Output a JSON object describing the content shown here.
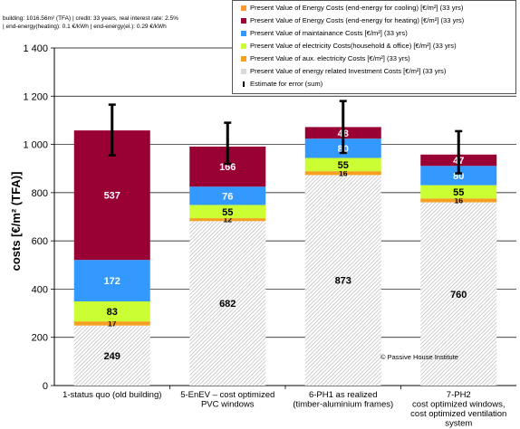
{
  "header": {
    "line1": "building: 1016.56m² (TFA) | credit: 33 years,  real interest rate: 2.5%",
    "line2": "| end-energy(heating):  0.1 €/kWh  |  end-energy(el.):  0.29 €/kWh"
  },
  "watermark": "© Passive House Institute",
  "chart_data": {
    "type": "bar",
    "stacked": true,
    "ylabel": "costs [€/m² (TFA)]",
    "ylim": [
      0,
      1400
    ],
    "yticks": [
      0,
      200,
      400,
      600,
      800,
      1000,
      1200,
      1400
    ],
    "ytick_labels": [
      "0",
      "200",
      "400",
      "600",
      "800",
      "1 000",
      "1 200",
      "1 400"
    ],
    "grid": "horizontal",
    "legend_position": "top-right",
    "categories": [
      [
        "1-status quo (old building)"
      ],
      [
        "5-EnEV – cost optimized",
        "PVC windows"
      ],
      [
        "6-PH1 as realized",
        "(timber-aluminium frames)"
      ],
      [
        "7-PH2",
        "cost optimized windows,",
        "cost optimized ventilation",
        "system"
      ]
    ],
    "series": [
      {
        "name": "Present Value of energy related Investment Costs  [€/m²]  (33 yrs)",
        "color": "#d9d9d9",
        "pattern": true,
        "values": [
          249,
          682,
          873,
          760
        ]
      },
      {
        "name": "Present Value of aux. electricity  Costs [€/m²]  (33 yrs)",
        "color": "#f5a020",
        "values": [
          17,
          12,
          16,
          16
        ]
      },
      {
        "name": "Present  Value of electricity  Costs(household & office)  [€/m²]  (33 yrs)",
        "color": "#ccff33",
        "values": [
          83,
          55,
          55,
          55
        ]
      },
      {
        "name": "Present  Value of maintainance  Costs  [€/m²]  (33 yrs)",
        "color": "#3399ff",
        "values": [
          172,
          76,
          80,
          80
        ]
      },
      {
        "name": "Present  Value of Energy Costs  (end-energy for heating)  [€/m²]  (33 yrs)",
        "color": "#990033",
        "values": [
          537,
          166,
          48,
          47
        ]
      },
      {
        "name": "Present  Value of Energy Costs  (end-energy for cooling)  [€/m²]  (33 yrs)",
        "color": "#ff9933",
        "values": [
          0,
          0,
          0,
          0
        ]
      }
    ],
    "error_bars": {
      "name": "Estimate for error (sum)",
      "color": "#000000",
      "low": [
        955,
        920,
        965,
        880
      ],
      "high": [
        1165,
        1090,
        1180,
        1055
      ]
    },
    "legend_order": [
      5,
      4,
      3,
      2,
      1,
      0,
      "error"
    ]
  }
}
